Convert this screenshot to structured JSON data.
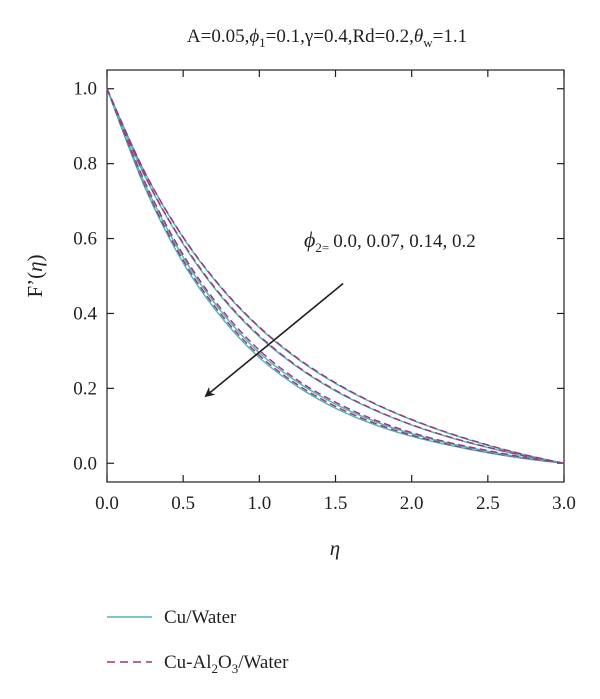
{
  "chart_data": {
    "type": "line",
    "title": "A=0.05,ϕ1=0.1,γ=0.4,Rd=0.2,θw=1.1",
    "title_parts": {
      "A": "A=0.05,",
      "phi": "ϕ",
      "phi_sub": "1",
      "gamma": "=0.1,γ=0.4,Rd=0.2,",
      "theta": "θ",
      "theta_sub": "w",
      "theta_val": "=1.1"
    },
    "xlabel": "η",
    "ylabel": "F’(η)",
    "ylabel_parts": {
      "prefix": "F’(",
      "eta": "η",
      "suffix": ")"
    },
    "xlim": [
      0.0,
      3.0
    ],
    "ylim": [
      -0.05,
      1.05
    ],
    "x_ticks": [
      "0.0",
      "0.5",
      "1.0",
      "1.5",
      "2.0",
      "2.5",
      "3.0"
    ],
    "y_ticks": [
      "0.0",
      "0.2",
      "0.4",
      "0.6",
      "0.8",
      "1.0"
    ],
    "grid": false,
    "legend_position": "bottom",
    "annotation": {
      "text": "ϕ2=0.0, 0.07, 0.14, 0.2",
      "symbol": "ϕ",
      "subscript": "2=",
      "values": "0.0, 0.07, 0.14, 0.2",
      "arrow_from": [
        1.55,
        0.48
      ],
      "arrow_to": [
        0.65,
        0.18
      ]
    },
    "x": [
      0.0,
      0.25,
      0.5,
      0.75,
      1.0,
      1.25,
      1.5,
      1.75,
      2.0,
      2.25,
      2.5,
      2.75,
      3.0
    ],
    "series": [
      {
        "name": "Cu/Water",
        "fluid": "Cu/Water",
        "phi2": "0.0",
        "style": "solid",
        "color": "#4bb6b6",
        "values": [
          1.0,
          0.735,
          0.535,
          0.39,
          0.282,
          0.205,
          0.147,
          0.104,
          0.072,
          0.048,
          0.028,
          0.012,
          0.0
        ]
      },
      {
        "name": "Cu-Al2O3/Water",
        "fluid": "Cu-Al2O3/Water",
        "phi2": "0.0",
        "style": "dashed",
        "color": "#a0317e",
        "values": [
          1.0,
          0.74,
          0.542,
          0.397,
          0.288,
          0.21,
          0.152,
          0.108,
          0.075,
          0.05,
          0.03,
          0.013,
          0.0
        ]
      },
      {
        "name": "Cu/Water",
        "fluid": "Cu/Water",
        "phi2": "0.07",
        "style": "solid",
        "color": "#4bb6b6",
        "values": [
          1.0,
          0.745,
          0.55,
          0.405,
          0.295,
          0.217,
          0.158,
          0.113,
          0.079,
          0.053,
          0.032,
          0.014,
          0.0
        ]
      },
      {
        "name": "Cu-Al2O3/Water",
        "fluid": "Cu-Al2O3/Water",
        "phi2": "0.07",
        "style": "dashed",
        "color": "#a0317e",
        "values": [
          1.0,
          0.75,
          0.557,
          0.412,
          0.302,
          0.222,
          0.163,
          0.117,
          0.082,
          0.055,
          0.034,
          0.015,
          0.0
        ]
      },
      {
        "name": "Cu/Water",
        "fluid": "Cu/Water",
        "phi2": "0.14",
        "style": "solid",
        "color": "#4bb6b6",
        "values": [
          1.0,
          0.765,
          0.585,
          0.445,
          0.338,
          0.257,
          0.193,
          0.143,
          0.102,
          0.069,
          0.042,
          0.019,
          0.0
        ]
      },
      {
        "name": "Cu-Al2O3/Water",
        "fluid": "Cu-Al2O3/Water",
        "phi2": "0.14",
        "style": "dashed",
        "color": "#a0317e",
        "values": [
          1.0,
          0.767,
          0.588,
          0.448,
          0.341,
          0.259,
          0.195,
          0.144,
          0.103,
          0.07,
          0.043,
          0.019,
          0.0
        ]
      },
      {
        "name": "Cu/Water",
        "fluid": "Cu/Water",
        "phi2": "0.2",
        "style": "solid",
        "color": "#4bb6b6",
        "values": [
          1.0,
          0.775,
          0.602,
          0.468,
          0.362,
          0.279,
          0.213,
          0.16,
          0.116,
          0.079,
          0.048,
          0.022,
          0.0
        ]
      },
      {
        "name": "Cu-Al2O3/Water",
        "fluid": "Cu-Al2O3/Water",
        "phi2": "0.2",
        "style": "dashed",
        "color": "#a0317e",
        "values": [
          1.0,
          0.776,
          0.604,
          0.47,
          0.364,
          0.281,
          0.215,
          0.161,
          0.117,
          0.08,
          0.049,
          0.022,
          0.0
        ]
      }
    ],
    "legend": [
      {
        "label": "Cu/Water",
        "style": "solid",
        "color": "#4bb6b6"
      },
      {
        "label": "Cu-Al2O3/Water",
        "style": "dashed",
        "color": "#a0317e",
        "parts": {
          "a": "Cu-Al",
          "sub1": "2",
          "b": "O",
          "sub2": "3",
          "c": "/Water"
        }
      }
    ]
  }
}
